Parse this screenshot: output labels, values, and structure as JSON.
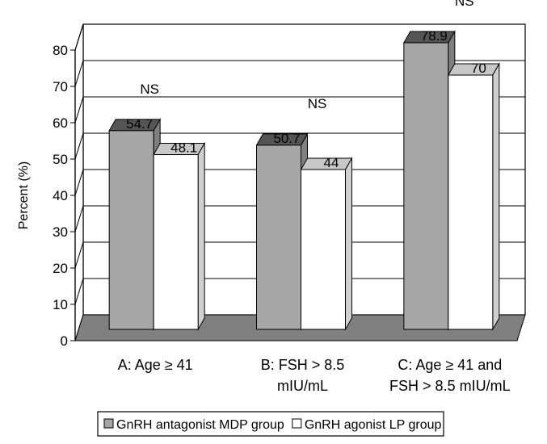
{
  "chart_data": {
    "type": "bar",
    "ylabel": "Percent (%)",
    "ylim": [
      0,
      80
    ],
    "yticks": [
      0,
      10,
      20,
      30,
      40,
      50,
      60,
      70,
      80
    ],
    "grid": true,
    "legend_position": "bottom",
    "categories": [
      [
        "A: Age ≥ 41"
      ],
      [
        "B: FSH > 8.5",
        "mIU/mL"
      ],
      [
        "C: Age ≥ 41 and",
        "FSH > 8.5 mIU/mL"
      ]
    ],
    "series": [
      {
        "name": "GnRH antagonist MDP group",
        "values": [
          54.7,
          50.7,
          78.9
        ],
        "labels": [
          "54.7",
          "50.7",
          "78.9"
        ],
        "color": "#a6a6a6"
      },
      {
        "name": "GnRH agonist LP group",
        "values": [
          48.1,
          44,
          70
        ],
        "labels": [
          "48.1",
          "44",
          "70"
        ],
        "color": "#ffffff"
      }
    ],
    "annotations": [
      "NS",
      "NS",
      "NS"
    ]
  }
}
